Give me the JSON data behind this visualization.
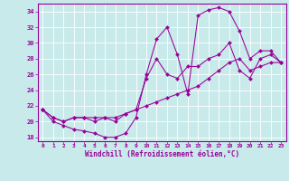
{
  "xlabel": "Windchill (Refroidissement éolien,°C)",
  "bg_color": "#c8eaea",
  "line_color": "#990099",
  "grid_color": "#ffffff",
  "xlim_min": -0.5,
  "xlim_max": 23.5,
  "ylim_min": 17.5,
  "ylim_max": 35.0,
  "xticks": [
    0,
    1,
    2,
    3,
    4,
    5,
    6,
    7,
    8,
    9,
    10,
    11,
    12,
    13,
    14,
    15,
    16,
    17,
    18,
    19,
    20,
    21,
    22,
    23
  ],
  "yticks": [
    18,
    20,
    22,
    24,
    26,
    28,
    30,
    32,
    34
  ],
  "line1_x": [
    0,
    1,
    2,
    3,
    4,
    5,
    6,
    7,
    8,
    9,
    10,
    11,
    12,
    13,
    14,
    15,
    16,
    17,
    18,
    19,
    20,
    21,
    22,
    23
  ],
  "line1_y": [
    21.5,
    20.0,
    19.5,
    19.0,
    18.8,
    18.5,
    18.0,
    18.0,
    18.5,
    20.5,
    26.0,
    30.5,
    32.0,
    28.5,
    23.5,
    33.5,
    34.2,
    34.5,
    34.0,
    31.5,
    28.0,
    29.0,
    29.0,
    27.5
  ],
  "line2_x": [
    0,
    1,
    2,
    3,
    4,
    5,
    6,
    7,
    8,
    9,
    10,
    11,
    12,
    13,
    14,
    15,
    16,
    17,
    18,
    19,
    20,
    21,
    22,
    23
  ],
  "line2_y": [
    21.5,
    20.5,
    20.0,
    20.5,
    20.5,
    20.5,
    20.5,
    20.5,
    21.0,
    21.5,
    22.0,
    22.5,
    23.0,
    23.5,
    24.0,
    24.5,
    25.5,
    26.5,
    27.5,
    28.0,
    26.5,
    27.0,
    27.5,
    27.5
  ],
  "line3_x": [
    0,
    1,
    2,
    3,
    4,
    5,
    6,
    7,
    8,
    9,
    10,
    11,
    12,
    13,
    14,
    15,
    16,
    17,
    18,
    19,
    20,
    21,
    22,
    23
  ],
  "line3_y": [
    21.5,
    20.5,
    20.0,
    20.5,
    20.5,
    20.0,
    20.5,
    20.0,
    21.0,
    21.5,
    25.5,
    28.0,
    26.0,
    25.5,
    27.0,
    27.0,
    28.0,
    28.5,
    30.0,
    26.5,
    25.5,
    28.0,
    28.5,
    27.5
  ]
}
